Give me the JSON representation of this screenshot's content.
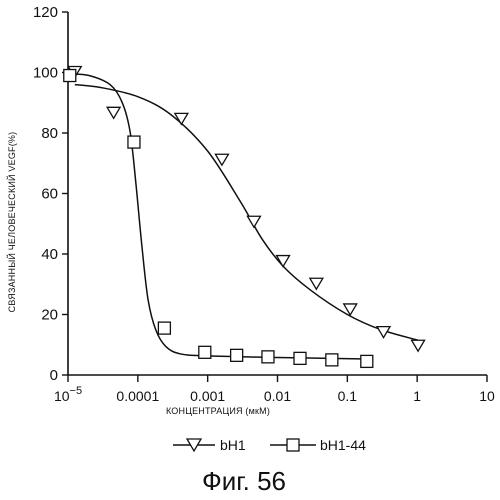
{
  "chart_data": {
    "type": "scatter",
    "ylabel": "СВЯЗАННЫЙ ЧЕЛОВЕЧЕСКИЙ VEGF(%)",
    "xlabel": "КОНЦЕНТРАЦИЯ (мкМ)",
    "x_scale": "log",
    "xlim": [
      1e-05,
      10
    ],
    "ylim": [
      0,
      120
    ],
    "x_ticks": [
      {
        "value": 1e-05,
        "base": "10",
        "exp": "−5"
      },
      {
        "value": 0.0001,
        "label": "0.0001"
      },
      {
        "value": 0.001,
        "label": "0.001"
      },
      {
        "value": 0.01,
        "label": "0.01"
      },
      {
        "value": 0.1,
        "label": "0.1"
      },
      {
        "value": 1,
        "label": "1"
      },
      {
        "value": 10,
        "label": "10"
      }
    ],
    "y_ticks": [
      {
        "value": 0,
        "label": "0"
      },
      {
        "value": 20,
        "label": "20"
      },
      {
        "value": 40,
        "label": "40"
      },
      {
        "value": 60,
        "label": "60"
      },
      {
        "value": 80,
        "label": "80"
      },
      {
        "value": 100,
        "label": "100"
      },
      {
        "value": 120,
        "label": "120"
      }
    ],
    "grid": false,
    "legend_position": "bottom",
    "series": [
      {
        "name": "bH1",
        "marker": "triangle-down",
        "points": [
          {
            "x": 1.25e-05,
            "y": 100.5
          },
          {
            "x": 4.5e-05,
            "y": 87
          },
          {
            "x": 0.00042,
            "y": 85
          },
          {
            "x": 0.0016,
            "y": 71.5
          },
          {
            "x": 0.0046,
            "y": 51
          },
          {
            "x": 0.012,
            "y": 38
          },
          {
            "x": 0.036,
            "y": 30.5
          },
          {
            "x": 0.11,
            "y": 22
          },
          {
            "x": 0.33,
            "y": 14.5
          },
          {
            "x": 1.03,
            "y": 10
          }
        ],
        "curve": [
          {
            "x": 1.25e-05,
            "y": 96
          },
          {
            "x": 3e-05,
            "y": 95
          },
          {
            "x": 0.0001,
            "y": 92
          },
          {
            "x": 0.0003,
            "y": 86
          },
          {
            "x": 0.001,
            "y": 74
          },
          {
            "x": 0.003,
            "y": 57
          },
          {
            "x": 0.006,
            "y": 45
          },
          {
            "x": 0.012,
            "y": 36
          },
          {
            "x": 0.03,
            "y": 28
          },
          {
            "x": 0.1,
            "y": 20
          },
          {
            "x": 0.3,
            "y": 15
          },
          {
            "x": 1.03,
            "y": 11.5
          }
        ]
      },
      {
        "name": "bH1-44",
        "marker": "square",
        "points": [
          {
            "x": 1.06e-05,
            "y": 99
          },
          {
            "x": 8.8e-05,
            "y": 77
          },
          {
            "x": 0.00024,
            "y": 15.5
          },
          {
            "x": 0.00091,
            "y": 7.5
          },
          {
            "x": 0.0026,
            "y": 6.5
          },
          {
            "x": 0.0073,
            "y": 6
          },
          {
            "x": 0.021,
            "y": 5.5
          },
          {
            "x": 0.06,
            "y": 5
          },
          {
            "x": 0.19,
            "y": 4.5
          }
        ],
        "curve": [
          {
            "x": 1.06e-05,
            "y": 99.5
          },
          {
            "x": 2e-05,
            "y": 99
          },
          {
            "x": 4e-05,
            "y": 96
          },
          {
            "x": 6e-05,
            "y": 90
          },
          {
            "x": 7.8e-05,
            "y": 80
          },
          {
            "x": 9.5e-05,
            "y": 62
          },
          {
            "x": 0.000115,
            "y": 42
          },
          {
            "x": 0.00014,
            "y": 25
          },
          {
            "x": 0.00018,
            "y": 15
          },
          {
            "x": 0.00025,
            "y": 9.5
          },
          {
            "x": 0.0004,
            "y": 7
          },
          {
            "x": 0.001,
            "y": 6.3
          },
          {
            "x": 0.01,
            "y": 5.8
          },
          {
            "x": 0.19,
            "y": 5.3
          }
        ]
      }
    ]
  },
  "caption": "Фиг. 56"
}
